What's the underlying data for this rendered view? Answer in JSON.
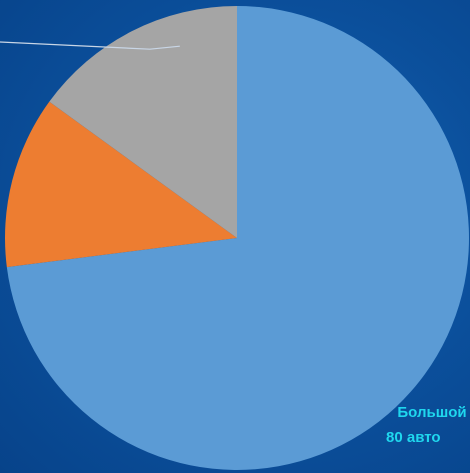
{
  "chart_data": {
    "type": "pie",
    "start_angle_deg": 0,
    "direction": "clockwise",
    "slices": [
      {
        "value": 73,
        "color": "#5b9bd5"
      },
      {
        "value": 12,
        "color": "#ed7d31"
      },
      {
        "value": 15,
        "color": "#a5a5a5"
      }
    ],
    "leader_line_color": "#c9d6e6",
    "data_label": {
      "line1": "Большой",
      "line2": "80 авто",
      "color": "#1fd7ee"
    }
  }
}
